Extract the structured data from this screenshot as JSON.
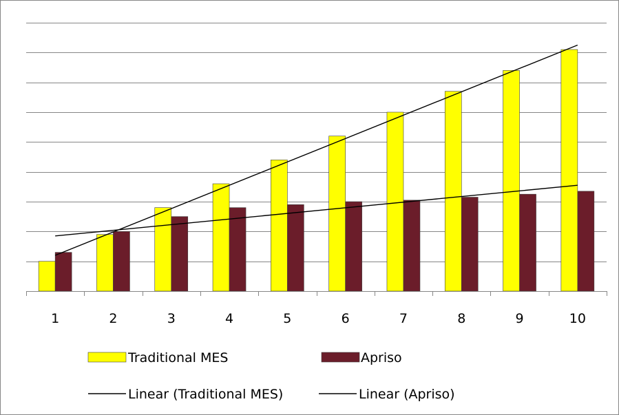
{
  "chart_data": {
    "type": "bar",
    "title": "",
    "xlabel": "",
    "ylabel": "",
    "categories": [
      "1",
      "2",
      "3",
      "4",
      "5",
      "6",
      "7",
      "8",
      "9",
      "10"
    ],
    "ylim": [
      0,
      9
    ],
    "grid": true,
    "legend_position": "bottom",
    "series": [
      {
        "name": "Traditional MES",
        "values": [
          1.0,
          1.9,
          2.8,
          3.6,
          4.4,
          5.2,
          6.0,
          6.7,
          7.4,
          8.1
        ],
        "color": "#ffff00"
      },
      {
        "name": "Apriso",
        "values": [
          1.3,
          2.0,
          2.5,
          2.8,
          2.9,
          3.0,
          3.05,
          3.15,
          3.25,
          3.35
        ],
        "color": "#6b1d2a"
      }
    ],
    "trendlines": [
      {
        "name": "Linear (Traditional MES)",
        "series": "Traditional MES",
        "type": "linear",
        "start": 1.2,
        "end": 8.25,
        "color": "#000000"
      },
      {
        "name": "Linear (Apriso)",
        "series": "Apriso",
        "type": "linear",
        "start": 1.85,
        "end": 3.55,
        "color": "#000000"
      }
    ]
  }
}
